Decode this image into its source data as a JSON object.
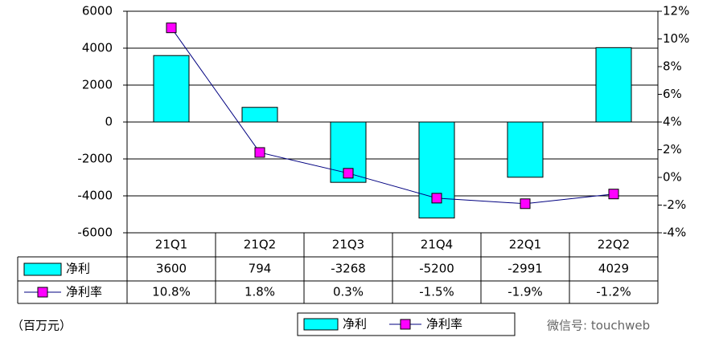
{
  "chart_data": {
    "type": "bar",
    "categories": [
      "21Q1",
      "21Q2",
      "21Q3",
      "21Q4",
      "22Q1",
      "22Q2"
    ],
    "series": [
      {
        "name": "净利",
        "color": "#00ffff",
        "values": [
          3600,
          794,
          -3268,
          -5200,
          -2991,
          4029
        ]
      },
      {
        "name": "净利率",
        "color": "#ff00ff",
        "axis": "y2",
        "values": [
          10.8,
          1.8,
          0.3,
          -1.5,
          -1.9,
          -1.2
        ],
        "value_labels": [
          "10.8%",
          "1.8%",
          "0.3%",
          "-1.5%",
          "-1.9%",
          "-1.2%"
        ]
      }
    ],
    "ylim": [
      -6000,
      6000
    ],
    "yticks": [
      -6000,
      -4000,
      -2000,
      0,
      2000,
      4000,
      6000
    ],
    "y2lim": [
      -4,
      12
    ],
    "y2ticks": [
      {
        "value": -4,
        "label": "-4%"
      },
      {
        "value": -2,
        "label": "-2%"
      },
      {
        "value": 0,
        "label": "0%"
      },
      {
        "value": 2,
        "label": "2%"
      },
      {
        "value": 4,
        "label": "4%"
      },
      {
        "value": 6,
        "label": "6%"
      },
      {
        "value": 8,
        "label": "8%"
      },
      {
        "value": 10,
        "label": "10%"
      },
      {
        "value": 12,
        "label": "12%"
      }
    ],
    "grid": true,
    "unit": "（百万元）"
  },
  "watermark": "微信号: touchweb"
}
